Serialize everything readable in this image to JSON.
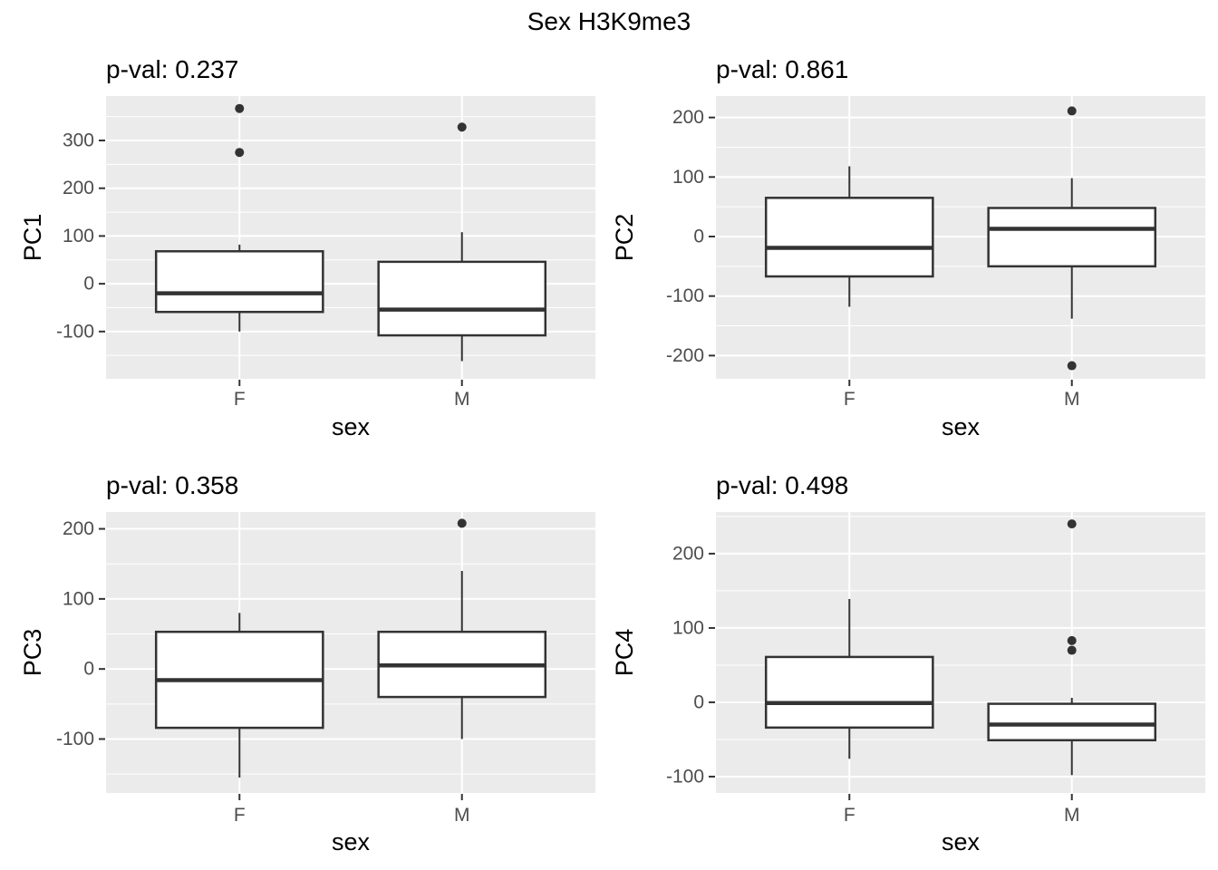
{
  "title": "Sex H3K9me3",
  "colors": {
    "panel_bg": "#EBEBEB",
    "grid": "#FFFFFF",
    "box_stroke": "#333333",
    "box_fill": "#FFFFFF",
    "axis_text": "#4D4D4D",
    "title_text": "#000000",
    "outlier": "#333333"
  },
  "chart_data": [
    {
      "type": "boxplot",
      "title_pval": "p-val: 0.237",
      "ylabel": "PC1",
      "xlabel": "sex",
      "categories": [
        "F",
        "M"
      ],
      "yticks": [
        300,
        200,
        100,
        0,
        -100
      ],
      "ylim": [
        -199,
        393
      ],
      "grid": "on",
      "series": [
        {
          "category": "F",
          "whisker_low": -100,
          "q1": -59,
          "median": -20,
          "q3": 68,
          "whisker_high": 82,
          "outliers": [
            367,
            275
          ]
        },
        {
          "category": "M",
          "whisker_low": -162,
          "q1": -108,
          "median": -54,
          "q3": 46,
          "whisker_high": 108,
          "outliers": [
            328
          ]
        }
      ]
    },
    {
      "type": "boxplot",
      "title_pval": "p-val: 0.861",
      "ylabel": "PC2",
      "xlabel": "sex",
      "categories": [
        "F",
        "M"
      ],
      "yticks": [
        200,
        100,
        0,
        -100,
        -200
      ],
      "ylim": [
        -239,
        236
      ],
      "grid": "on",
      "series": [
        {
          "category": "F",
          "whisker_low": -118,
          "q1": -67,
          "median": -19,
          "q3": 65,
          "whisker_high": 118,
          "outliers": []
        },
        {
          "category": "M",
          "whisker_low": -138,
          "q1": -50,
          "median": 13,
          "q3": 48,
          "whisker_high": 98,
          "outliers": [
            211,
            -217
          ]
        }
      ]
    },
    {
      "type": "boxplot",
      "title_pval": "p-val: 0.358",
      "ylabel": "PC3",
      "xlabel": "sex",
      "categories": [
        "F",
        "M"
      ],
      "yticks": [
        200,
        100,
        0,
        -100
      ],
      "ylim": [
        -177,
        224
      ],
      "grid": "on",
      "series": [
        {
          "category": "F",
          "whisker_low": -155,
          "q1": -84,
          "median": -16,
          "q3": 53,
          "whisker_high": 80,
          "outliers": []
        },
        {
          "category": "M",
          "whisker_low": -100,
          "q1": -40,
          "median": 5,
          "q3": 53,
          "whisker_high": 140,
          "outliers": [
            208
          ]
        }
      ]
    },
    {
      "type": "boxplot",
      "title_pval": "p-val: 0.498",
      "ylabel": "PC4",
      "xlabel": "sex",
      "categories": [
        "F",
        "M"
      ],
      "yticks": [
        200,
        100,
        0,
        -100
      ],
      "ylim": [
        -122,
        256
      ],
      "grid": "on",
      "series": [
        {
          "category": "F",
          "whisker_low": -76,
          "q1": -34,
          "median": -1,
          "q3": 61,
          "whisker_high": 139,
          "outliers": []
        },
        {
          "category": "M",
          "whisker_low": -98,
          "q1": -51,
          "median": -30,
          "q3": -2,
          "whisker_high": 6,
          "outliers": [
            240,
            83,
            70
          ]
        }
      ]
    }
  ]
}
